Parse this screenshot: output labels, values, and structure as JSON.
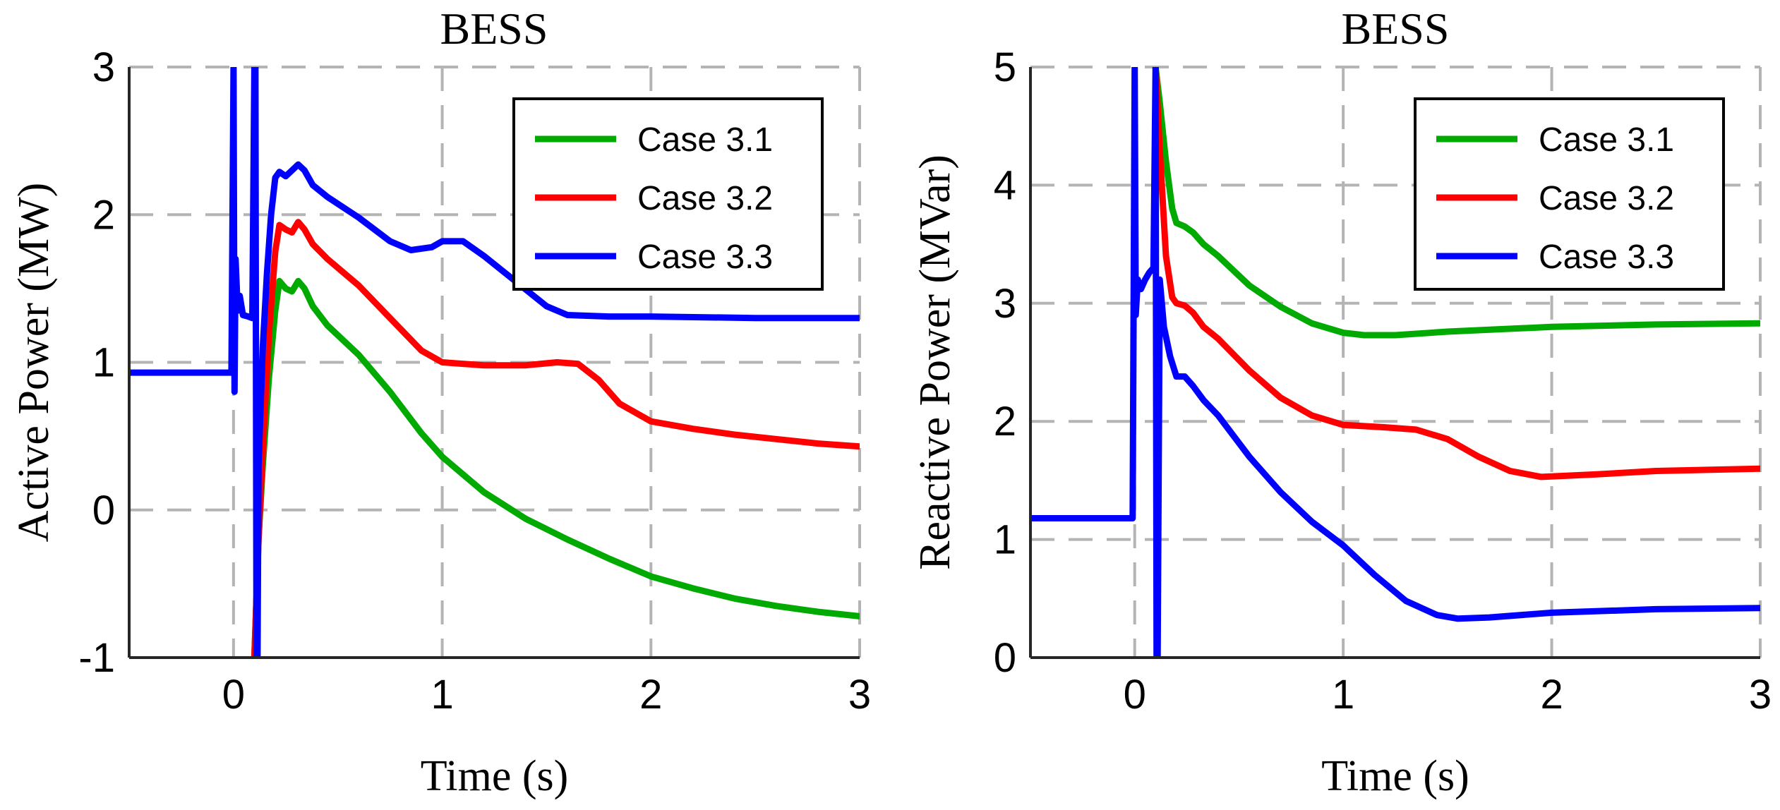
{
  "chart_data": [
    {
      "type": "line",
      "title": "BESS",
      "xlabel": "Time (s)",
      "ylabel": "Active Power (MW)",
      "xlim": [
        -0.5,
        3
      ],
      "ylim": [
        -1,
        3
      ],
      "xticks": [
        0,
        1,
        2,
        3
      ],
      "yticks": [
        -1,
        0,
        1,
        2,
        3
      ],
      "xtick_labels": [
        "0",
        "1",
        "2",
        "3"
      ],
      "ytick_labels": [
        "-1",
        "0",
        "1",
        "2",
        "3"
      ],
      "grid": true,
      "legend_position": "top-right",
      "series": [
        {
          "name": "Case 3.1",
          "color": "#00aa00",
          "points": [
            [
              0.1,
              -1.0
            ],
            [
              0.12,
              -0.2
            ],
            [
              0.14,
              0.3
            ],
            [
              0.17,
              0.9
            ],
            [
              0.2,
              1.35
            ],
            [
              0.22,
              1.55
            ],
            [
              0.25,
              1.5
            ],
            [
              0.28,
              1.48
            ],
            [
              0.31,
              1.55
            ],
            [
              0.34,
              1.5
            ],
            [
              0.38,
              1.38
            ],
            [
              0.45,
              1.25
            ],
            [
              0.6,
              1.05
            ],
            [
              0.75,
              0.8
            ],
            [
              0.9,
              0.52
            ],
            [
              1.0,
              0.36
            ],
            [
              1.2,
              0.12
            ],
            [
              1.4,
              -0.06
            ],
            [
              1.6,
              -0.2
            ],
            [
              1.8,
              -0.33
            ],
            [
              2.0,
              -0.45
            ],
            [
              2.2,
              -0.53
            ],
            [
              2.4,
              -0.6
            ],
            [
              2.6,
              -0.65
            ],
            [
              2.8,
              -0.69
            ],
            [
              3.0,
              -0.72
            ]
          ]
        },
        {
          "name": "Case 3.2",
          "color": "#ff0000",
          "points": [
            [
              0.1,
              -1.0
            ],
            [
              0.12,
              -0.2
            ],
            [
              0.14,
              0.4
            ],
            [
              0.17,
              1.2
            ],
            [
              0.2,
              1.75
            ],
            [
              0.22,
              1.93
            ],
            [
              0.25,
              1.9
            ],
            [
              0.28,
              1.88
            ],
            [
              0.31,
              1.95
            ],
            [
              0.34,
              1.9
            ],
            [
              0.38,
              1.8
            ],
            [
              0.45,
              1.7
            ],
            [
              0.6,
              1.52
            ],
            [
              0.75,
              1.3
            ],
            [
              0.9,
              1.08
            ],
            [
              1.0,
              1.0
            ],
            [
              1.2,
              0.98
            ],
            [
              1.4,
              0.98
            ],
            [
              1.55,
              1.0
            ],
            [
              1.65,
              0.99
            ],
            [
              1.75,
              0.88
            ],
            [
              1.85,
              0.72
            ],
            [
              2.0,
              0.6
            ],
            [
              2.2,
              0.55
            ],
            [
              2.4,
              0.51
            ],
            [
              2.6,
              0.48
            ],
            [
              2.8,
              0.45
            ],
            [
              3.0,
              0.43
            ]
          ]
        },
        {
          "name": "Case 3.3",
          "color": "#0000ff",
          "points": [
            [
              -0.5,
              0.93
            ],
            [
              -0.02,
              0.93
            ],
            [
              -0.01,
              0.93
            ],
            [
              0.0,
              3.0
            ],
            [
              0.005,
              0.8
            ],
            [
              0.01,
              1.7
            ],
            [
              0.02,
              1.35
            ],
            [
              0.03,
              1.45
            ],
            [
              0.045,
              1.32
            ],
            [
              0.07,
              1.31
            ],
            [
              0.09,
              1.3
            ],
            [
              0.1,
              3.0
            ],
            [
              0.105,
              3.0
            ],
            [
              0.11,
              -1.0
            ],
            [
              0.115,
              -1.0
            ],
            [
              0.12,
              0.3
            ],
            [
              0.14,
              1.1
            ],
            [
              0.16,
              1.6
            ],
            [
              0.18,
              2.0
            ],
            [
              0.2,
              2.25
            ],
            [
              0.22,
              2.29
            ],
            [
              0.25,
              2.26
            ],
            [
              0.28,
              2.3
            ],
            [
              0.31,
              2.34
            ],
            [
              0.34,
              2.3
            ],
            [
              0.38,
              2.2
            ],
            [
              0.45,
              2.12
            ],
            [
              0.6,
              1.98
            ],
            [
              0.75,
              1.82
            ],
            [
              0.85,
              1.76
            ],
            [
              0.95,
              1.78
            ],
            [
              1.0,
              1.82
            ],
            [
              1.1,
              1.82
            ],
            [
              1.2,
              1.72
            ],
            [
              1.35,
              1.55
            ],
            [
              1.5,
              1.38
            ],
            [
              1.6,
              1.32
            ],
            [
              1.8,
              1.31
            ],
            [
              2.0,
              1.31
            ],
            [
              2.5,
              1.3
            ],
            [
              3.0,
              1.3
            ]
          ]
        }
      ]
    },
    {
      "type": "line",
      "title": "BESS",
      "xlabel": "Time (s)",
      "ylabel": "Reactive Power (MVar)",
      "xlim": [
        -0.5,
        3
      ],
      "ylim": [
        0,
        5
      ],
      "xticks": [
        0,
        1,
        2,
        3
      ],
      "yticks": [
        0,
        1,
        2,
        3,
        4,
        5
      ],
      "xtick_labels": [
        "0",
        "1",
        "2",
        "3"
      ],
      "ytick_labels": [
        "0",
        "1",
        "2",
        "3",
        "4",
        "5"
      ],
      "grid": true,
      "legend_position": "top-right",
      "series": [
        {
          "name": "Case 3.1",
          "color": "#00aa00",
          "points": [
            [
              0.1,
              5.0
            ],
            [
              0.12,
              4.7
            ],
            [
              0.15,
              4.2
            ],
            [
              0.18,
              3.8
            ],
            [
              0.2,
              3.68
            ],
            [
              0.24,
              3.65
            ],
            [
              0.28,
              3.6
            ],
            [
              0.33,
              3.5
            ],
            [
              0.4,
              3.4
            ],
            [
              0.55,
              3.15
            ],
            [
              0.7,
              2.97
            ],
            [
              0.85,
              2.83
            ],
            [
              1.0,
              2.75
            ],
            [
              1.1,
              2.73
            ],
            [
              1.25,
              2.73
            ],
            [
              1.5,
              2.76
            ],
            [
              2.0,
              2.8
            ],
            [
              2.5,
              2.82
            ],
            [
              3.0,
              2.83
            ]
          ]
        },
        {
          "name": "Case 3.2",
          "color": "#ff0000",
          "points": [
            [
              0.1,
              5.0
            ],
            [
              0.12,
              4.3
            ],
            [
              0.15,
              3.4
            ],
            [
              0.18,
              3.05
            ],
            [
              0.2,
              3.0
            ],
            [
              0.24,
              2.98
            ],
            [
              0.28,
              2.92
            ],
            [
              0.33,
              2.8
            ],
            [
              0.4,
              2.7
            ],
            [
              0.55,
              2.43
            ],
            [
              0.7,
              2.2
            ],
            [
              0.85,
              2.05
            ],
            [
              1.0,
              1.97
            ],
            [
              1.2,
              1.95
            ],
            [
              1.35,
              1.93
            ],
            [
              1.5,
              1.85
            ],
            [
              1.65,
              1.7
            ],
            [
              1.8,
              1.58
            ],
            [
              1.95,
              1.53
            ],
            [
              2.2,
              1.55
            ],
            [
              2.5,
              1.58
            ],
            [
              3.0,
              1.6
            ]
          ]
        },
        {
          "name": "Case 3.3",
          "color": "#0000ff",
          "points": [
            [
              -0.5,
              1.18
            ],
            [
              -0.02,
              1.18
            ],
            [
              -0.01,
              1.18
            ],
            [
              0.0,
              5.0
            ],
            [
              0.005,
              2.9
            ],
            [
              0.015,
              3.2
            ],
            [
              0.03,
              3.12
            ],
            [
              0.05,
              3.2
            ],
            [
              0.07,
              3.26
            ],
            [
              0.09,
              3.3
            ],
            [
              0.1,
              5.0
            ],
            [
              0.105,
              0.0
            ],
            [
              0.11,
              0.0
            ],
            [
              0.12,
              3.2
            ],
            [
              0.14,
              2.8
            ],
            [
              0.17,
              2.55
            ],
            [
              0.2,
              2.38
            ],
            [
              0.24,
              2.38
            ],
            [
              0.28,
              2.3
            ],
            [
              0.33,
              2.18
            ],
            [
              0.4,
              2.05
            ],
            [
              0.55,
              1.7
            ],
            [
              0.7,
              1.4
            ],
            [
              0.85,
              1.15
            ],
            [
              1.0,
              0.95
            ],
            [
              1.15,
              0.7
            ],
            [
              1.3,
              0.48
            ],
            [
              1.45,
              0.36
            ],
            [
              1.55,
              0.33
            ],
            [
              1.7,
              0.34
            ],
            [
              2.0,
              0.38
            ],
            [
              2.5,
              0.41
            ],
            [
              3.0,
              0.42
            ]
          ]
        }
      ]
    }
  ]
}
